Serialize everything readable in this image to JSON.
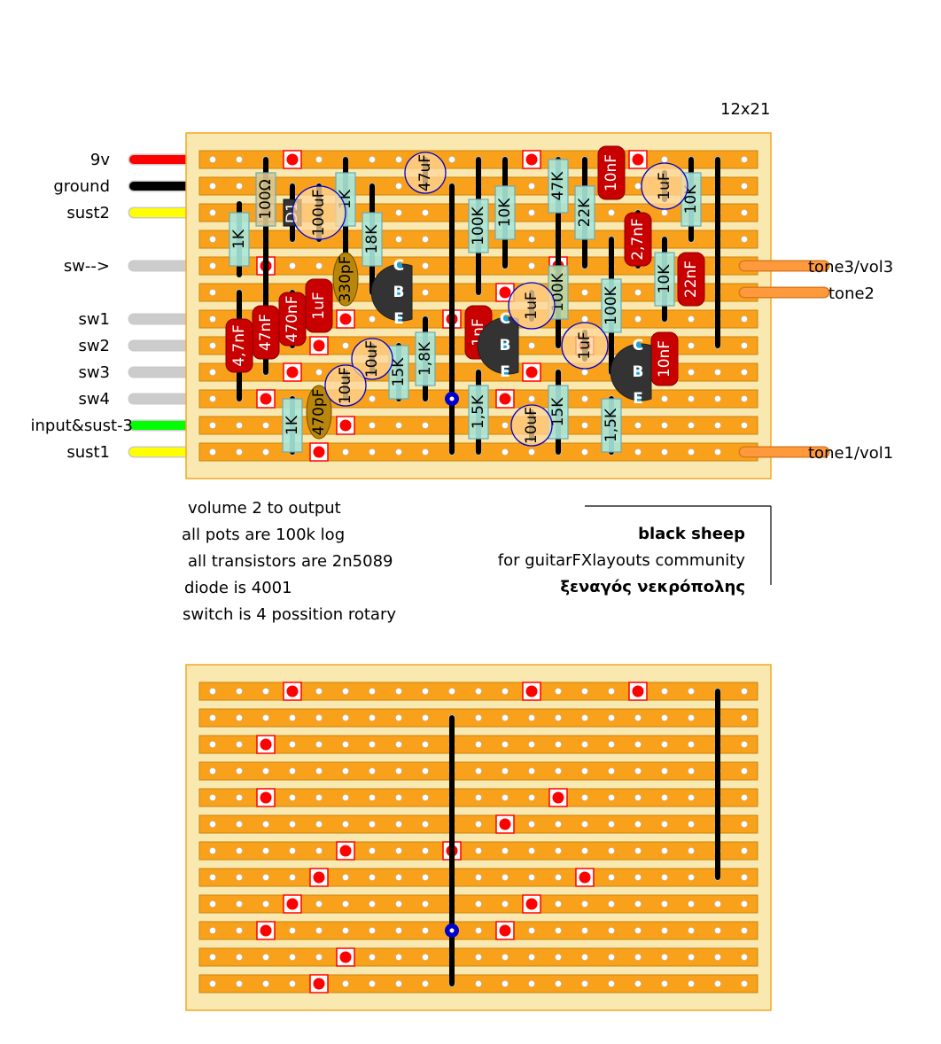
{
  "board_size": "12x21",
  "wires_left": [
    {
      "label": "9v",
      "color": "#ff0000"
    },
    {
      "label": "ground",
      "color": "#000000"
    },
    {
      "label": "sust2",
      "color": "#ffff00"
    },
    {
      "label": "sw-->",
      "color": "#cccccc"
    },
    {
      "label": "sw1",
      "color": "#cccccc"
    },
    {
      "label": "sw2",
      "color": "#cccccc"
    },
    {
      "label": "sw3",
      "color": "#cccccc"
    },
    {
      "label": "sw4",
      "color": "#cccccc"
    },
    {
      "label": "input&sust-3",
      "color": "#00ff00"
    },
    {
      "label": "sust1",
      "color": "#ffff00"
    }
  ],
  "wires_right": [
    {
      "label": "tone3/vol3",
      "color": "#ff9a3c"
    },
    {
      "label": "tone2",
      "color": "#ff9a3c"
    },
    {
      "label": "tone1/vol1",
      "color": "#ff9a3c"
    }
  ],
  "components": {
    "resistors": [
      "1K",
      "100Ω",
      "1K",
      "18K",
      "15K",
      "1,8K",
      "1K",
      "100K",
      "10K",
      "47K",
      "22K",
      "100K",
      "100K",
      "10K",
      "10K",
      "1,5K",
      "15K",
      "1,5K"
    ],
    "film_caps": [
      "4,7nF",
      "47nF",
      "470nF",
      "1uF",
      "1nF",
      "10nF",
      "2,7nF",
      "22nF",
      "10nF"
    ],
    "ceramic_caps": [
      "330pF",
      "470pF"
    ],
    "electrolytics": [
      "47uF",
      "100uF",
      "10uF",
      "10uF",
      "1uF",
      "1uF",
      "10uF",
      "1uF"
    ],
    "diode": "D1",
    "transistor_pins": [
      "C",
      "B",
      "E"
    ]
  },
  "notes": [
    "volume 2 to output",
    "all pots are 100k log",
    "all transistors are 2n5089",
    "diode is 4001",
    "switch is 4 possition rotary"
  ],
  "credits": {
    "title": "black sheep",
    "subtitle": "for guitarFXlayouts community",
    "author": "ξεναγός νεκρόπολης"
  },
  "colors": {
    "board": "#f9e8b0",
    "strip": "#f9a11b",
    "cut": "#ff0000",
    "resistor": "#a8e8dc",
    "film_cap": "#c80000",
    "ceramic_cap": "#b8860b",
    "electrolytic": "#ffd59a",
    "transistor": "#333333"
  }
}
